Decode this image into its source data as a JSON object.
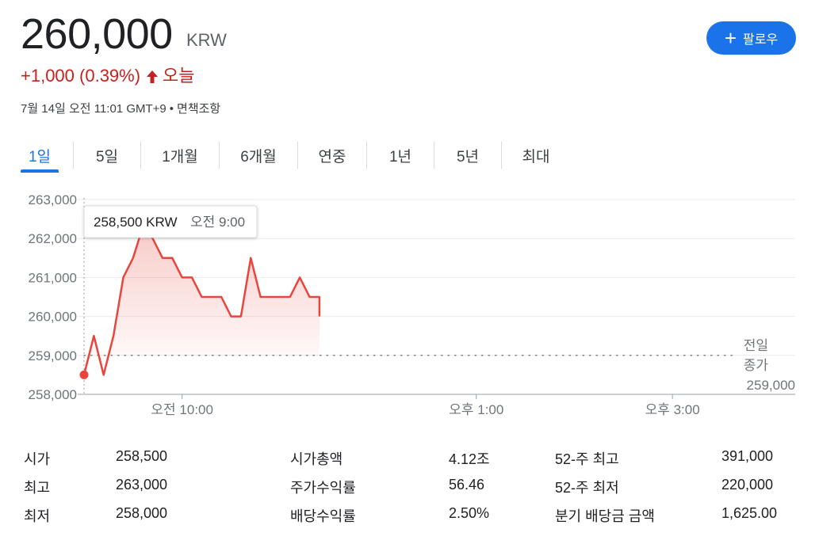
{
  "header": {
    "price": "260,000",
    "currency": "KRW",
    "change": "+1,000 (0.39%)",
    "change_label": "오늘",
    "date": "7월 14일 오전 11:01 GMT+9",
    "disclaimer": "면책조항",
    "follow_label": "팔로우",
    "follow_icon": "plus-icon",
    "up_color": "#c5221f",
    "accent_color": "#1a73e8"
  },
  "tabs": [
    {
      "label": "1일",
      "selected": true
    },
    {
      "label": "5일"
    },
    {
      "label": "1개월"
    },
    {
      "label": "6개월"
    },
    {
      "label": "연중"
    },
    {
      "label": "1년"
    },
    {
      "label": "5년"
    },
    {
      "label": "최대"
    }
  ],
  "chart_data": {
    "type": "line",
    "y_ticks": [
      "263,000",
      "262,000",
      "261,000",
      "260,000",
      "259,000",
      "258,000"
    ],
    "ylim": [
      258000,
      263000
    ],
    "x_ticks": [
      {
        "label": "오전 10:00",
        "minutes": 60
      },
      {
        "label": "오후 1:00",
        "minutes": 240
      },
      {
        "label": "오후 3:00",
        "minutes": 360
      }
    ],
    "x_domain_minutes": [
      0,
      390
    ],
    "series": [
      {
        "color": "#e8453c",
        "points": [
          [
            0,
            258500
          ],
          [
            6,
            259500
          ],
          [
            12,
            258500
          ],
          [
            18,
            259500
          ],
          [
            24,
            261000
          ],
          [
            30,
            261500
          ],
          [
            36,
            262300
          ],
          [
            42,
            262000
          ],
          [
            48,
            261500
          ],
          [
            54,
            261500
          ],
          [
            60,
            261000
          ],
          [
            66,
            261000
          ],
          [
            72,
            260500
          ],
          [
            84,
            260500
          ],
          [
            90,
            260000
          ],
          [
            96,
            260000
          ],
          [
            102,
            261500
          ],
          [
            108,
            260500
          ],
          [
            126,
            260500
          ],
          [
            132,
            261000
          ],
          [
            138,
            260500
          ],
          [
            144,
            260500
          ],
          [
            144,
            260000
          ]
        ]
      }
    ],
    "previous_close": {
      "value": 259000,
      "label_line1": "전일",
      "label_line2": "종가",
      "label_value": "259,000"
    },
    "tooltip": {
      "value": "258,500 KRW",
      "time": "오전 9:00"
    }
  },
  "stats": [
    {
      "label": "시가",
      "value": "258,500"
    },
    {
      "label": "최고",
      "value": "263,000"
    },
    {
      "label": "최저",
      "value": "258,000"
    },
    {
      "label": "시가총액",
      "value": "4.12조"
    },
    {
      "label": "주가수익률",
      "value": "56.46"
    },
    {
      "label": "배당수익률",
      "value": "2.50%"
    },
    {
      "label": "52-주 최고",
      "value": "391,000"
    },
    {
      "label": "52-주 최저",
      "value": "220,000"
    },
    {
      "label": "분기 배당금 금액",
      "value": "1,625.00"
    }
  ]
}
